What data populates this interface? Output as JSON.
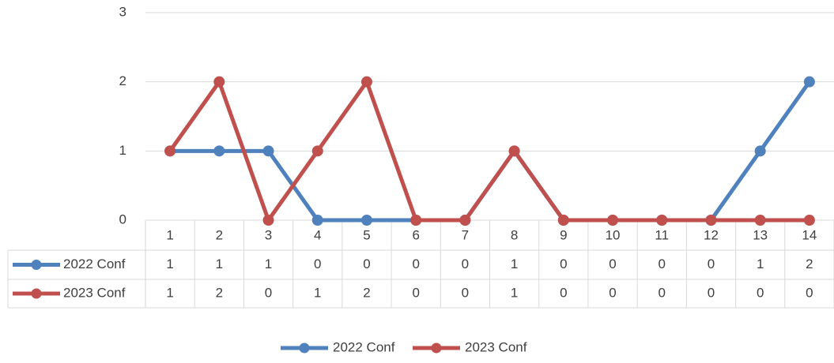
{
  "chart_data": {
    "type": "line",
    "categories": [
      "1",
      "2",
      "3",
      "4",
      "5",
      "6",
      "7",
      "8",
      "9",
      "10",
      "11",
      "12",
      "13",
      "14"
    ],
    "series": [
      {
        "name": "2022 Conf",
        "color": "#4f81bd",
        "values": [
          1,
          1,
          1,
          0,
          0,
          0,
          0,
          1,
          0,
          0,
          0,
          0,
          1,
          2
        ]
      },
      {
        "name": "2023 Conf",
        "color": "#c0504d",
        "values": [
          1,
          2,
          0,
          1,
          2,
          0,
          0,
          1,
          0,
          0,
          0,
          0,
          0,
          0
        ]
      }
    ],
    "ylim": [
      0,
      3
    ],
    "yticks": [
      0,
      1,
      2,
      3
    ],
    "grid": true,
    "legend": "bottom",
    "data_table": true
  }
}
